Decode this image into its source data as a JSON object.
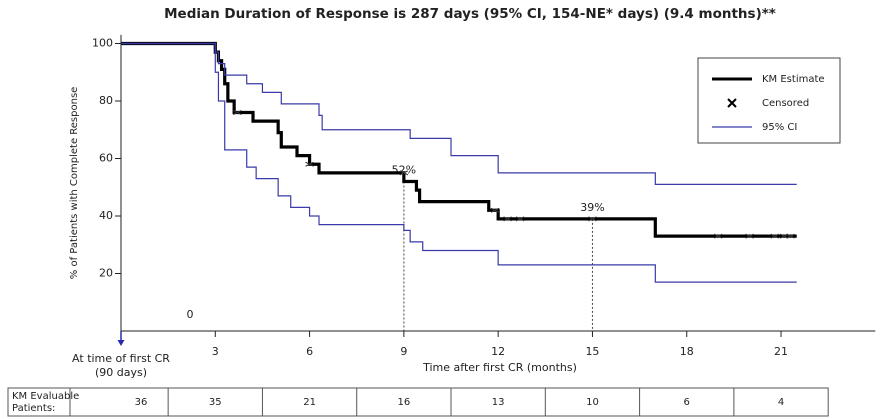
{
  "chart_data": {
    "type": "line",
    "title": "Median Duration of Response is 287 days (95% CI, 154-NE* days) (9.4 months)**",
    "x_label": "Time after first CR (months)",
    "y_label": "% of Patients with Complete Response",
    "origin_label": "0",
    "start_label": [
      "At time of first CR",
      "(90 days)"
    ],
    "xlim": [
      0,
      24
    ],
    "ylim": [
      0,
      103
    ],
    "xticks": [
      3,
      6,
      9,
      12,
      15,
      18,
      21
    ],
    "yticks": [
      20,
      40,
      60,
      80,
      100
    ],
    "step": true,
    "series": [
      {
        "name": "KM Estimate",
        "color": "#000000",
        "x": [
          0,
          3.0,
          3.1,
          3.2,
          3.3,
          3.4,
          3.6,
          4.2,
          5.0,
          5.1,
          5.6,
          6.0,
          6.3,
          9.0,
          9.4,
          9.5,
          11.7,
          12.0,
          17.0,
          21.5
        ],
        "values": [
          100,
          97,
          94,
          91,
          86,
          80,
          76,
          73,
          69,
          64,
          61,
          58,
          55,
          52,
          49,
          45,
          42,
          39,
          33,
          33
        ]
      },
      {
        "name": "Censored",
        "color": "#333333",
        "x": [
          3.7,
          6.0,
          9.0,
          11.9,
          12.3,
          12.7,
          15.0,
          19.0,
          20.0,
          20.8,
          21.1,
          21.3
        ],
        "values": [
          76,
          58,
          55,
          42,
          39,
          39,
          39,
          33,
          33,
          33,
          33,
          33
        ]
      },
      {
        "name": "95% CI",
        "color": "#3a3aa8",
        "bands": [
          {
            "x": [
              0,
              3.0,
              3.1,
              3.3,
              4.0,
              4.5,
              5.1,
              6.3,
              6.4,
              9.2,
              10.5,
              12.0,
              17.0,
              21.5
            ],
            "values": [
              100,
              97,
              93,
              89,
              86,
              83,
              79,
              75,
              70,
              67,
              61,
              55,
              51,
              51
            ]
          },
          {
            "x": [
              0,
              3.0,
              3.1,
              3.3,
              4.0,
              4.3,
              5.0,
              5.4,
              6.0,
              6.3,
              9.0,
              9.2,
              9.6,
              12.0,
              17.0,
              21.5
            ],
            "values": [
              100,
              90,
              80,
              63,
              57,
              53,
              47,
              43,
              40,
              37,
              35,
              31,
              28,
              23,
              17,
              17
            ]
          }
        ]
      }
    ],
    "annotations": [
      {
        "x": 9,
        "y": 52,
        "label": "52%"
      },
      {
        "x": 15,
        "y": 39,
        "label": "39%"
      }
    ],
    "risk_table": {
      "label": [
        "KM Evaluable",
        "Patients:"
      ],
      "x": [
        0,
        3,
        6,
        9,
        12,
        15,
        18,
        21
      ],
      "counts": [
        36,
        35,
        21,
        16,
        13,
        10,
        6,
        4
      ]
    }
  }
}
